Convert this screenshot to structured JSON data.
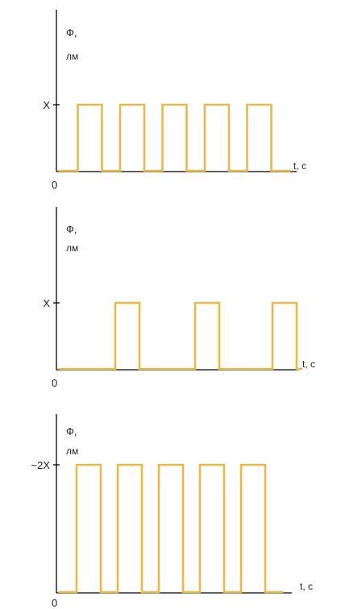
{
  "chart_data": [
    {
      "type": "line",
      "ylabel_line1": "Ф,",
      "ylabel_line2": "лм",
      "xlabel": "t, с",
      "origin_label": "0",
      "ytick_label": "X",
      "ytick_value": 1,
      "xlim": [
        0,
        10
      ],
      "ylim": [
        0,
        1.6
      ],
      "series": [
        {
          "x": [
            0,
            0.75,
            0.75,
            1.75,
            1.75,
            2.5,
            2.5,
            3.5,
            3.5,
            4.25,
            4.25,
            5.25,
            5.25,
            6,
            6,
            7,
            7,
            7.75,
            7.75,
            8.75,
            8.75,
            9.5
          ],
          "y": [
            0,
            0,
            1,
            1,
            0,
            0,
            1,
            1,
            0,
            0,
            1,
            1,
            0,
            0,
            1,
            1,
            0,
            0,
            1,
            1,
            0,
            0
          ]
        }
      ]
    },
    {
      "type": "line",
      "ylabel_line1": "Ф,",
      "ylabel_line2": "лм",
      "xlabel": "t, с",
      "origin_label": "0",
      "ytick_label": "X",
      "ytick_value": 1,
      "xlim": [
        0,
        10
      ],
      "ylim": [
        0,
        2.2
      ],
      "series": [
        {
          "x": [
            0,
            2.3,
            2.3,
            3.3,
            3.3,
            5.6,
            5.6,
            6.6,
            6.6,
            8.8,
            8.8,
            9.8,
            9.8,
            10
          ],
          "y": [
            0,
            0,
            1,
            1,
            0,
            0,
            1,
            1,
            0,
            0,
            1,
            1,
            0,
            0
          ]
        }
      ]
    },
    {
      "type": "line",
      "ylabel_line1": "Ф,",
      "ylabel_line2": "лм",
      "xlabel": "t, с",
      "origin_label": "0",
      "ytick_label": "~2X",
      "ytick_value": 2,
      "xlim": [
        0,
        10
      ],
      "ylim": [
        0,
        2.6
      ],
      "series": [
        {
          "x": [
            0,
            0.7,
            0.7,
            1.7,
            1.7,
            2.4,
            2.4,
            3.4,
            3.4,
            4.1,
            4.1,
            5.1,
            5.1,
            5.8,
            5.8,
            6.8,
            6.8,
            7.5,
            7.5,
            8.5,
            8.5,
            9.2
          ],
          "y": [
            0,
            0,
            2,
            2,
            0,
            0,
            2,
            2,
            0,
            0,
            2,
            2,
            0,
            0,
            2,
            2,
            0,
            0,
            2,
            2,
            0,
            0
          ]
        }
      ]
    }
  ],
  "colors": {
    "signal": "#E8B84A",
    "axis": "#000000"
  }
}
